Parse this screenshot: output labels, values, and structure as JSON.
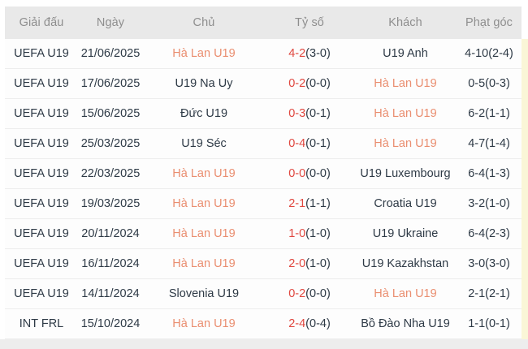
{
  "colors": {
    "header_bg": "#e9e9e9",
    "header_text": "#8e8e8e",
    "row_text": "#2e3a46",
    "score_red": "#e0473f",
    "team_highlight": "#ea8e70",
    "right_strip": "#faf6d7",
    "bottom_strip": "#ededed"
  },
  "table": {
    "columns": [
      {
        "key": "league",
        "label": "Giải đấu"
      },
      {
        "key": "date",
        "label": "Ngày"
      },
      {
        "key": "home",
        "label": "Chủ"
      },
      {
        "key": "score",
        "label": "Tỷ số"
      },
      {
        "key": "away",
        "label": "Khách"
      },
      {
        "key": "corners",
        "label": "Phạt góc"
      }
    ],
    "rows": [
      {
        "league": "UEFA U19",
        "date": "21/06/2025",
        "home": {
          "name": "Hà Lan U19",
          "highlighted": true
        },
        "score": {
          "ft": "4-2",
          "ht": "(3-0)"
        },
        "away": {
          "name": "U19 Anh",
          "highlighted": false
        },
        "corners": "4-10(2-4)"
      },
      {
        "league": "UEFA U19",
        "date": "17/06/2025",
        "home": {
          "name": "U19 Na Uy",
          "highlighted": false
        },
        "score": {
          "ft": "0-2",
          "ht": "(0-0)"
        },
        "away": {
          "name": "Hà Lan U19",
          "highlighted": true
        },
        "corners": "0-5(0-3)"
      },
      {
        "league": "UEFA U19",
        "date": "15/06/2025",
        "home": {
          "name": "Đức U19",
          "highlighted": false
        },
        "score": {
          "ft": "0-3",
          "ht": "(0-1)"
        },
        "away": {
          "name": "Hà Lan U19",
          "highlighted": true
        },
        "corners": "6-2(1-1)"
      },
      {
        "league": "UEFA U19",
        "date": "25/03/2025",
        "home": {
          "name": "U19 Séc",
          "highlighted": false
        },
        "score": {
          "ft": "0-4",
          "ht": "(0-1)"
        },
        "away": {
          "name": "Hà Lan U19",
          "highlighted": true
        },
        "corners": "4-7(1-4)"
      },
      {
        "league": "UEFA U19",
        "date": "22/03/2025",
        "home": {
          "name": "Hà Lan U19",
          "highlighted": true
        },
        "score": {
          "ft": "0-0",
          "ht": "(0-0)"
        },
        "away": {
          "name": "U19 Luxembourg",
          "highlighted": false
        },
        "corners": "6-4(1-3)"
      },
      {
        "league": "UEFA U19",
        "date": "19/03/2025",
        "home": {
          "name": "Hà Lan U19",
          "highlighted": true
        },
        "score": {
          "ft": "2-1",
          "ht": "(1-1)"
        },
        "away": {
          "name": "Croatia U19",
          "highlighted": false
        },
        "corners": "3-2(1-0)"
      },
      {
        "league": "UEFA U19",
        "date": "20/11/2024",
        "home": {
          "name": "Hà Lan U19",
          "highlighted": true
        },
        "score": {
          "ft": "1-0",
          "ht": "(1-0)"
        },
        "away": {
          "name": "U19 Ukraine",
          "highlighted": false
        },
        "corners": "6-4(2-3)"
      },
      {
        "league": "UEFA U19",
        "date": "16/11/2024",
        "home": {
          "name": "Hà Lan U19",
          "highlighted": true
        },
        "score": {
          "ft": "2-0",
          "ht": "(1-0)"
        },
        "away": {
          "name": "U19 Kazakhstan",
          "highlighted": false
        },
        "corners": "3-0(3-0)"
      },
      {
        "league": "UEFA U19",
        "date": "14/11/2024",
        "home": {
          "name": "Slovenia U19",
          "highlighted": false
        },
        "score": {
          "ft": "0-2",
          "ht": "(0-0)"
        },
        "away": {
          "name": "Hà Lan U19",
          "highlighted": true
        },
        "corners": "2-1(2-1)"
      },
      {
        "league": "INT FRL",
        "date": "15/10/2024",
        "home": {
          "name": "Hà Lan U19",
          "highlighted": true
        },
        "score": {
          "ft": "2-4",
          "ht": "(0-4)"
        },
        "away": {
          "name": "Bồ Đào Nha U19",
          "highlighted": false
        },
        "corners": "1-1(0-1)"
      }
    ]
  }
}
